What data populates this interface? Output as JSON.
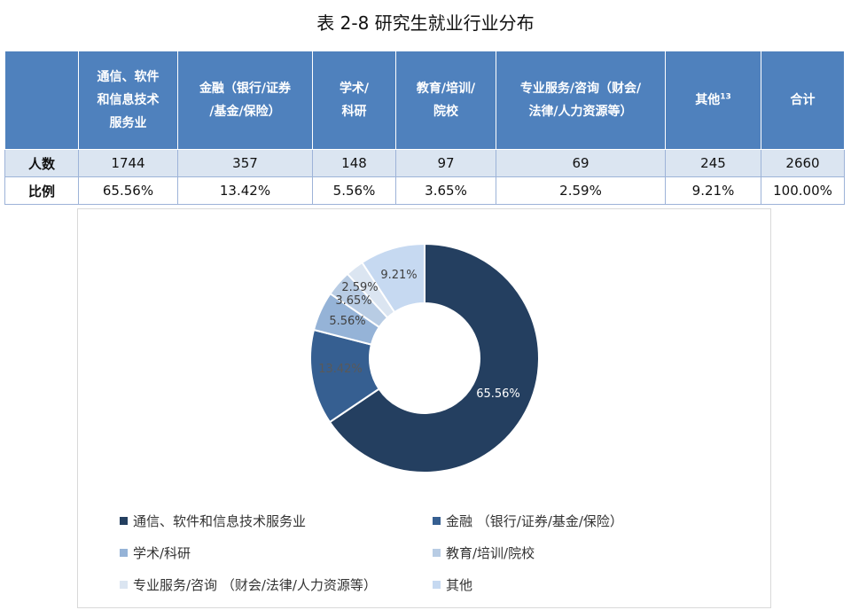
{
  "title": "表 2-8 研究生就业行业分布",
  "table": {
    "corner": "",
    "headers": [
      "通信、软件\n和信息技术\n服务业",
      "金融（银行/证券\n/基金/保险）",
      "学术/\n科研",
      "教育/培训/\n院校",
      "专业服务/咨询（财会/\n法律/人力资源等）",
      "其他",
      "合计"
    ],
    "other_footnote": "13",
    "rows": [
      {
        "label": "人数",
        "values": [
          "1744",
          "357",
          "148",
          "97",
          "69",
          "245",
          "2660"
        ]
      },
      {
        "label": "比例",
        "values": [
          "65.56%",
          "13.42%",
          "5.56%",
          "3.65%",
          "2.59%",
          "9.21%",
          "100.00%"
        ]
      }
    ]
  },
  "chart_data": {
    "type": "pie",
    "donut": true,
    "title": "",
    "categories": [
      "通信、软件和信息技术服务业",
      "金融（银行/证券/基金/保险）",
      "学术/科研",
      "教育/培训/院校",
      "专业服务/咨询（财会/法律/人力资源等）",
      "其他"
    ],
    "values": [
      65.56,
      13.42,
      5.56,
      3.65,
      2.59,
      9.21
    ],
    "labels": [
      "65.56%",
      "13.42%",
      "5.56%",
      "3.65%",
      "2.59%",
      "9.21%"
    ],
    "colors": [
      "#243f60",
      "#365f91",
      "#95b3d7",
      "#b8cce4",
      "#dbe5f1",
      "#c6d9f1"
    ],
    "label_colors": [
      "#ffffff",
      "#595959",
      "#404040",
      "#404040",
      "#404040",
      "#404040"
    ],
    "legend_position": "bottom",
    "legend": [
      "通信、软件和信息技术服务业",
      "金融 （银行/证券/基金/保险）",
      "学术/科研",
      "教育/培训/院校",
      "专业服务/咨询 （财会/法律/人力资源等）",
      "其他"
    ]
  }
}
